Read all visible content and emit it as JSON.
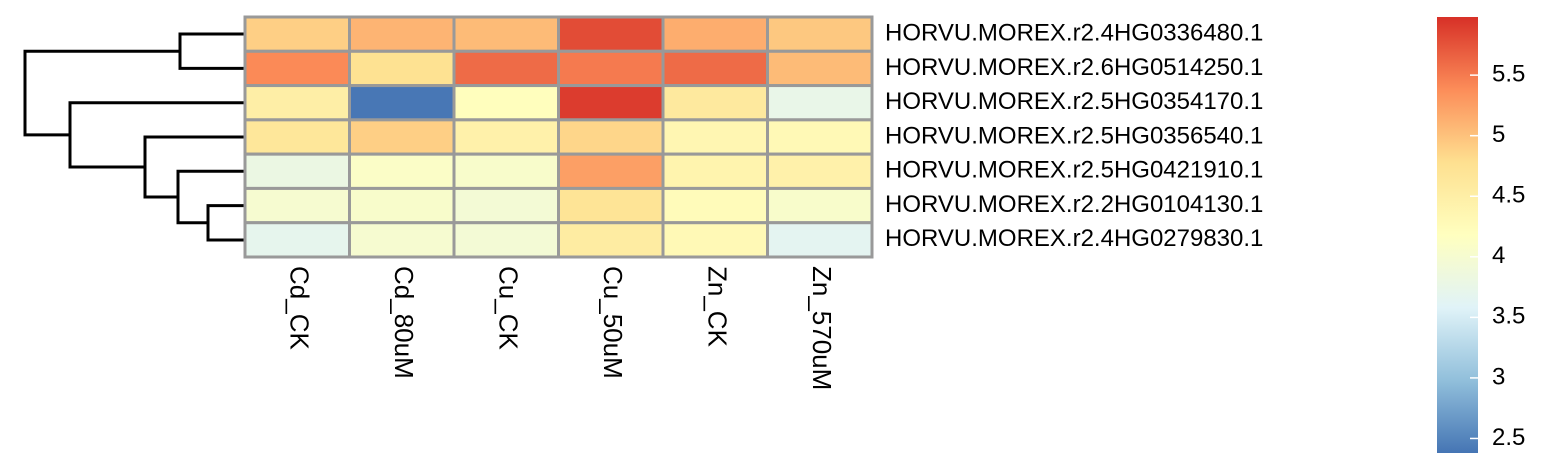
{
  "chart_data": {
    "type": "heatmap",
    "rows": [
      "HORVU.MOREX.r2.4HG0336480.1",
      "HORVU.MOREX.r2.6HG0514250.1",
      "HORVU.MOREX.r2.5HG0354170.1",
      "HORVU.MOREX.r2.5HG0356540.1",
      "HORVU.MOREX.r2.5HG0421910.1",
      "HORVU.MOREX.r2.2HG0104130.1",
      "HORVU.MOREX.r2.4HG0279830.1"
    ],
    "columns": [
      "Cd_CK",
      "Cd_80uM",
      "Cu_CK",
      "Cu_50uM",
      "Zn_CK",
      "Zn_570uM"
    ],
    "values": [
      [
        4.9,
        5.1,
        5.05,
        5.8,
        5.15,
        4.95
      ],
      [
        5.4,
        4.75,
        5.6,
        5.5,
        5.6,
        5.05
      ],
      [
        4.5,
        2.4,
        4.2,
        5.9,
        4.6,
        3.75
      ],
      [
        4.65,
        4.9,
        4.45,
        4.85,
        4.35,
        4.3
      ],
      [
        3.8,
        4.1,
        4.05,
        5.25,
        4.4,
        4.45
      ],
      [
        4.0,
        4.05,
        3.95,
        4.7,
        4.25,
        4.05
      ],
      [
        3.7,
        4.0,
        3.95,
        4.55,
        4.3,
        3.65
      ]
    ],
    "colors": [
      "#4575B4",
      "#91BFDB",
      "#E0F3F8",
      "#FFFFBF",
      "#FEE090",
      "#FC8D59",
      "#D73027"
    ],
    "zlim": [
      2.38,
      5.98
    ],
    "zticks": [
      2.5,
      3,
      3.5,
      4,
      4.5,
      5,
      5.5
    ]
  }
}
